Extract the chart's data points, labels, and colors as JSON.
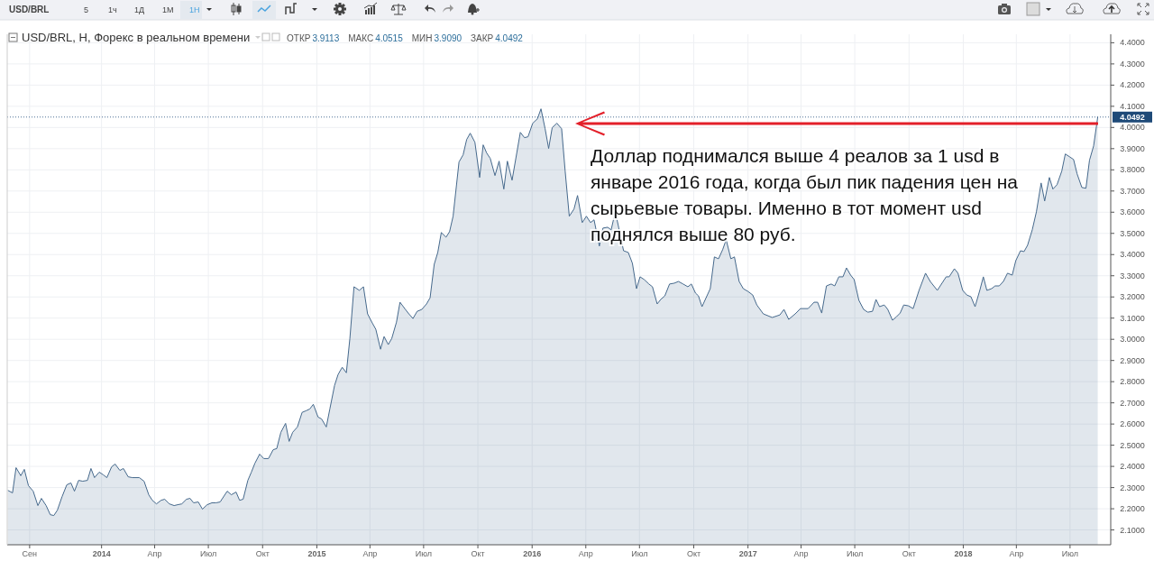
{
  "chart_data": {
    "type": "area",
    "title": "USD/BRL, H, Форекс в реальном времени",
    "annotations": [
      "USD/BRL",
      "5",
      "1ч",
      "1Д",
      "1М",
      "1Н",
      "ОТКР 3.9113",
      "МАКС 4.0515",
      "МИН 3.9090",
      "ЗАКР 4.0492",
      "Доллар поднимался выше 4 реалов за 1 usd в январе 2016 года, когда был пик падения цен на сырьевые товары. Именно в тот момент usd поднялся выше 80 руб."
    ],
    "xlim": [
      "2013-07-25",
      "2018-09-08"
    ],
    "xticks": [
      {
        "value": "2013-09-01",
        "label": "Сен"
      },
      {
        "value": "2014-01-01",
        "label": "2014"
      },
      {
        "value": "2014-04-01",
        "label": "Апр"
      },
      {
        "value": "2014-07-01",
        "label": "Июл"
      },
      {
        "value": "2014-10-01",
        "label": "Окт"
      },
      {
        "value": "2015-01-01",
        "label": "2015"
      },
      {
        "value": "2015-04-01",
        "label": "Апр"
      },
      {
        "value": "2015-07-01",
        "label": "Июл"
      },
      {
        "value": "2015-10-01",
        "label": "Окт"
      },
      {
        "value": "2016-01-01",
        "label": "2016"
      },
      {
        "value": "2016-04-01",
        "label": "Апр"
      },
      {
        "value": "2016-07-01",
        "label": "Июл"
      },
      {
        "value": "2016-10-01",
        "label": "Окт"
      },
      {
        "value": "2017-01-01",
        "label": "2017"
      },
      {
        "value": "2017-04-01",
        "label": "Апр"
      },
      {
        "value": "2017-07-01",
        "label": "Июл"
      },
      {
        "value": "2017-10-01",
        "label": "Окт"
      },
      {
        "value": "2018-01-01",
        "label": "2018"
      },
      {
        "value": "2018-04-01",
        "label": "Апр"
      },
      {
        "value": "2018-07-01",
        "label": "Июл"
      }
    ],
    "ylim": [
      2.03,
      4.44
    ],
    "yticks": [
      {
        "value": 2.1,
        "label": "2.1000"
      },
      {
        "value": 2.2,
        "label": "2.2000"
      },
      {
        "value": 2.3,
        "label": "2.3000"
      },
      {
        "value": 2.4,
        "label": "2.4000"
      },
      {
        "value": 2.5,
        "label": "2.5000"
      },
      {
        "value": 2.6,
        "label": "2.6000"
      },
      {
        "value": 2.7,
        "label": "2.7000"
      },
      {
        "value": 2.8,
        "label": "2.8000"
      },
      {
        "value": 2.9,
        "label": "2.9000"
      },
      {
        "value": 3.0,
        "label": "3.0000"
      },
      {
        "value": 3.1,
        "label": "3.1000"
      },
      {
        "value": 3.2,
        "label": "3.2000"
      },
      {
        "value": 3.3,
        "label": "3.3000"
      },
      {
        "value": 3.4,
        "label": "3.4000"
      },
      {
        "value": 3.5,
        "label": "3.5000"
      },
      {
        "value": 3.6,
        "label": "3.6000"
      },
      {
        "value": 3.7,
        "label": "3.7000"
      },
      {
        "value": 3.8,
        "label": "3.8000"
      },
      {
        "value": 3.9,
        "label": "3.9000"
      },
      {
        "value": 4.0,
        "label": "4.0000"
      },
      {
        "value": 4.1,
        "label": "4.1000"
      },
      {
        "value": 4.2,
        "label": "4.2000"
      },
      {
        "value": 4.3,
        "label": "4.3000"
      },
      {
        "value": 4.4,
        "label": "4.4000"
      }
    ],
    "grid": true,
    "ref_lines": [
      {
        "axis": "y",
        "value": 4.0492,
        "label": "4.0492",
        "color": "#1e4a78",
        "line_style": "dotted"
      }
    ],
    "series": [
      {
        "color": "#46698c",
        "x": [
          "2013-07-26",
          "2013-08-03",
          "2013-08-09",
          "2013-08-17",
          "2013-08-23",
          "2013-08-30",
          "2013-09-07",
          "2013-09-15",
          "2013-09-21",
          "2013-09-29",
          "2013-10-06",
          "2013-10-12",
          "2013-10-18",
          "2013-10-26",
          "2013-11-03",
          "2013-11-10",
          "2013-11-16",
          "2013-11-23",
          "2013-11-30",
          "2013-12-08",
          "2013-12-14",
          "2013-12-20",
          "2013-12-28",
          "2014-01-04",
          "2014-01-10",
          "2014-01-18",
          "2014-01-24",
          "2014-02-01",
          "2014-02-07",
          "2014-02-15",
          "2014-02-22",
          "2014-03-06",
          "2014-03-14",
          "2014-03-22",
          "2014-03-28",
          "2014-04-04",
          "2014-04-12",
          "2014-04-18",
          "2014-04-26",
          "2014-05-04",
          "2014-05-10",
          "2014-05-17",
          "2014-05-25",
          "2014-05-31",
          "2014-06-06",
          "2014-06-14",
          "2014-06-21",
          "2014-06-29",
          "2014-07-07",
          "2014-07-14",
          "2014-07-21",
          "2014-08-02",
          "2014-08-09",
          "2014-08-17",
          "2014-08-23",
          "2014-08-29",
          "2014-09-06",
          "2014-09-12",
          "2014-09-18",
          "2014-09-26",
          "2014-10-03",
          "2014-10-11",
          "2014-10-19",
          "2014-10-25",
          "2014-11-01",
          "2014-11-09",
          "2014-11-15",
          "2014-11-21",
          "2014-11-29",
          "2014-12-07",
          "2014-12-14",
          "2014-12-20",
          "2014-12-26",
          "2015-01-03",
          "2015-01-09",
          "2015-01-17",
          "2015-01-23",
          "2015-01-31",
          "2015-02-06",
          "2015-02-13",
          "2015-02-20",
          "2015-02-26",
          "2015-03-05",
          "2015-03-14",
          "2015-03-21",
          "2015-03-28",
          "2015-04-05",
          "2015-04-11",
          "2015-04-19",
          "2015-04-25",
          "2015-05-02",
          "2015-05-08",
          "2015-05-16",
          "2015-05-22",
          "2015-05-30",
          "2015-06-06",
          "2015-06-13",
          "2015-06-20",
          "2015-06-28",
          "2015-07-06",
          "2015-07-12",
          "2015-07-19",
          "2015-07-25",
          "2015-07-31",
          "2015-08-08",
          "2015-08-14",
          "2015-08-20",
          "2015-08-30",
          "2015-09-06",
          "2015-09-12",
          "2015-09-18",
          "2015-09-26",
          "2015-10-04",
          "2015-10-10",
          "2015-10-16",
          "2015-10-22",
          "2015-10-30",
          "2015-11-06",
          "2015-11-14",
          "2015-11-20",
          "2015-11-28",
          "2015-12-12",
          "2015-12-19",
          "2015-12-25",
          "2016-01-02",
          "2016-01-10",
          "2016-01-16",
          "2016-01-23",
          "2016-01-29",
          "2016-02-04",
          "2016-02-12",
          "2016-02-20",
          "2016-02-26",
          "2016-03-04",
          "2016-03-12",
          "2016-03-18",
          "2016-03-26",
          "2016-04-02",
          "2016-04-09",
          "2016-04-15",
          "2016-04-24",
          "2016-04-30",
          "2016-05-08",
          "2016-05-14",
          "2016-05-21",
          "2016-05-27",
          "2016-06-04",
          "2016-06-12",
          "2016-06-19",
          "2016-06-26",
          "2016-07-02",
          "2016-07-09",
          "2016-07-17",
          "2016-07-23",
          "2016-07-31",
          "2016-08-06",
          "2016-08-13",
          "2016-08-21",
          "2016-08-29",
          "2016-09-05",
          "2016-09-13",
          "2016-09-21",
          "2016-09-27",
          "2016-10-04",
          "2016-10-09",
          "2016-10-15",
          "2016-10-29",
          "2016-11-05",
          "2016-11-12",
          "2016-11-19",
          "2016-11-25",
          "2016-12-03",
          "2016-12-09",
          "2016-12-17",
          "2016-12-24",
          "2017-01-01",
          "2017-01-09",
          "2017-01-16",
          "2017-01-27",
          "2017-02-11",
          "2017-02-24",
          "2017-03-03",
          "2017-03-11",
          "2017-03-22",
          "2017-03-31",
          "2017-04-13",
          "2017-04-23",
          "2017-04-29",
          "2017-05-06",
          "2017-05-14",
          "2017-05-22",
          "2017-05-28",
          "2017-06-04",
          "2017-06-11",
          "2017-06-17",
          "2017-06-24",
          "2017-06-30",
          "2017-07-08",
          "2017-07-16",
          "2017-07-23",
          "2017-07-31",
          "2017-08-06",
          "2017-08-12",
          "2017-08-20",
          "2017-08-26",
          "2017-09-03",
          "2017-09-10",
          "2017-09-16",
          "2017-09-22",
          "2017-09-30",
          "2017-10-08",
          "2017-10-18",
          "2017-10-29",
          "2017-11-06",
          "2017-11-18",
          "2017-12-03",
          "2017-12-08",
          "2017-12-17",
          "2017-12-23",
          "2017-12-31",
          "2018-01-07",
          "2018-01-14",
          "2018-01-21",
          "2018-01-29",
          "2018-02-04",
          "2018-02-10",
          "2018-02-18",
          "2018-02-24",
          "2018-03-03",
          "2018-03-10",
          "2018-03-17",
          "2018-03-25",
          "2018-03-31",
          "2018-04-08",
          "2018-04-14",
          "2018-04-20",
          "2018-04-28",
          "2018-05-05",
          "2018-05-13",
          "2018-05-19",
          "2018-05-27",
          "2018-06-02",
          "2018-06-09",
          "2018-06-17",
          "2018-06-23",
          "2018-06-30",
          "2018-07-07",
          "2018-07-13",
          "2018-07-21",
          "2018-07-28",
          "2018-08-03",
          "2018-08-10",
          "2018-08-17"
        ],
        "values": [
          2.287,
          2.275,
          2.394,
          2.356,
          2.386,
          2.309,
          2.283,
          2.215,
          2.249,
          2.215,
          2.172,
          2.168,
          2.193,
          2.257,
          2.313,
          2.322,
          2.283,
          2.334,
          2.33,
          2.334,
          2.39,
          2.347,
          2.373,
          2.36,
          2.347,
          2.398,
          2.411,
          2.381,
          2.39,
          2.351,
          2.347,
          2.347,
          2.33,
          2.266,
          2.24,
          2.223,
          2.24,
          2.245,
          2.223,
          2.215,
          2.219,
          2.223,
          2.245,
          2.249,
          2.228,
          2.232,
          2.198,
          2.219,
          2.228,
          2.228,
          2.232,
          2.283,
          2.266,
          2.279,
          2.24,
          2.245,
          2.334,
          2.373,
          2.415,
          2.458,
          2.437,
          2.437,
          2.479,
          2.484,
          2.561,
          2.603,
          2.518,
          2.561,
          2.586,
          2.655,
          2.663,
          2.671,
          2.693,
          2.633,
          2.624,
          2.586,
          2.671,
          2.782,
          2.834,
          2.868,
          2.842,
          3.004,
          3.248,
          3.231,
          3.248,
          3.12,
          3.077,
          3.047,
          2.953,
          3.013,
          2.975,
          3.004,
          3.081,
          3.175,
          3.145,
          3.12,
          3.098,
          3.132,
          3.141,
          3.167,
          3.196,
          3.354,
          3.41,
          3.504,
          3.482,
          3.508,
          3.581,
          3.837,
          3.871,
          3.943,
          3.973,
          3.93,
          3.764,
          3.918,
          3.879,
          3.854,
          3.773,
          3.841,
          3.709,
          3.841,
          3.751,
          3.977,
          3.952,
          3.956,
          4.02,
          4.041,
          4.088,
          3.994,
          3.901,
          3.999,
          4.02,
          3.994,
          3.794,
          3.581,
          3.615,
          3.679,
          3.551,
          3.581,
          3.551,
          3.564,
          3.44,
          3.525,
          3.529,
          3.517,
          3.602,
          3.525,
          3.418,
          3.41,
          3.359,
          3.239,
          3.295,
          3.282,
          3.261,
          3.248,
          3.167,
          3.188,
          3.205,
          3.261,
          3.265,
          3.273,
          3.261,
          3.248,
          3.261,
          3.218,
          3.205,
          3.154,
          3.239,
          3.389,
          3.38,
          3.423,
          3.47,
          3.38,
          3.389,
          3.273,
          3.239,
          3.226,
          3.209,
          3.162,
          3.12,
          3.103,
          3.115,
          3.141,
          3.094,
          3.12,
          3.145,
          3.145,
          3.175,
          3.175,
          3.124,
          3.252,
          3.261,
          3.252,
          3.295,
          3.295,
          3.337,
          3.303,
          3.282,
          3.184,
          3.141,
          3.128,
          3.132,
          3.188,
          3.154,
          3.162,
          3.141,
          3.09,
          3.107,
          3.124,
          3.162,
          3.158,
          3.145,
          3.231,
          3.312,
          3.273,
          3.231,
          3.295,
          3.295,
          3.333,
          3.312,
          3.231,
          3.209,
          3.201,
          3.154,
          3.231,
          3.295,
          3.231,
          3.239,
          3.252,
          3.252,
          3.273,
          3.312,
          3.303,
          3.371,
          3.418,
          3.414,
          3.444,
          3.517,
          3.602,
          3.738,
          3.653,
          3.764,
          3.709,
          3.73,
          3.794,
          3.875,
          3.862,
          3.849,
          3.781,
          3.717,
          3.713,
          3.845,
          3.913,
          4.05
        ]
      }
    ]
  }
}
